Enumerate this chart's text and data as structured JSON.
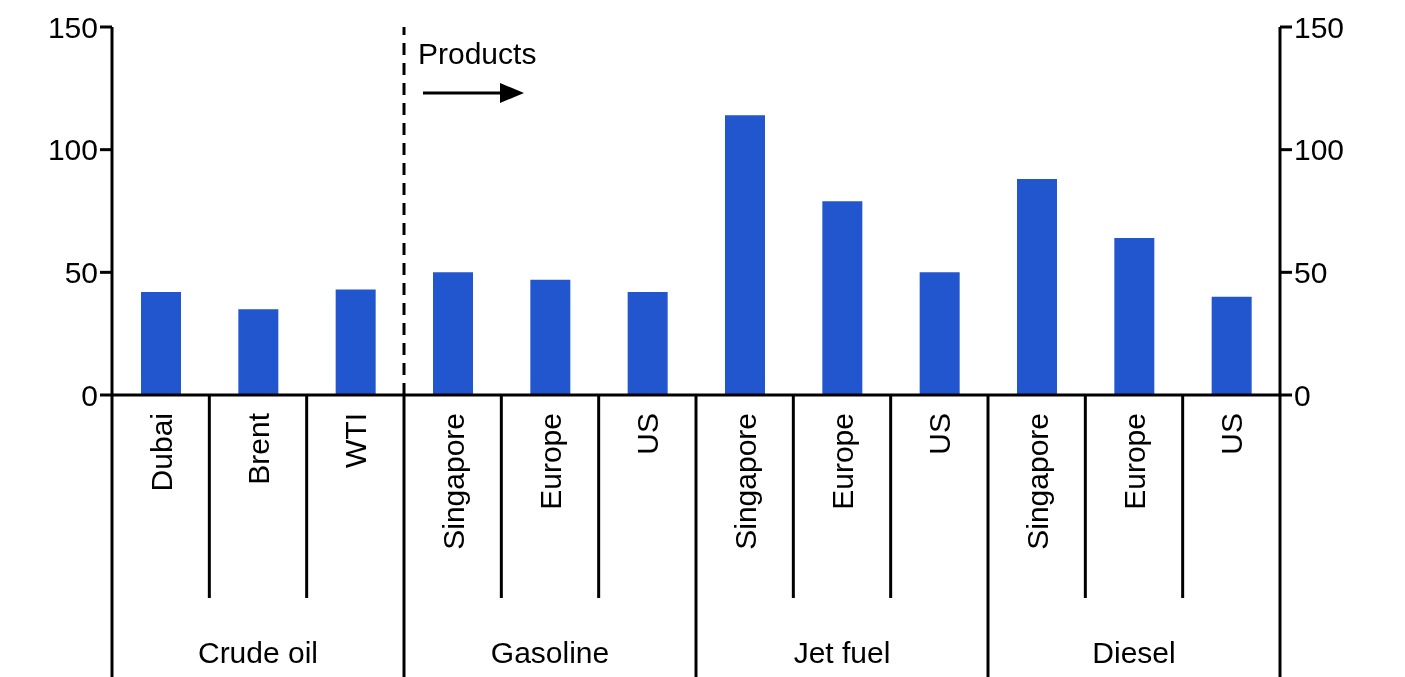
{
  "chart_data": {
    "type": "bar",
    "categories": [
      "Dubai",
      "Brent",
      "WTI",
      "Singapore",
      "Europe",
      "US",
      "Singapore",
      "Europe",
      "US",
      "Singapore",
      "Europe",
      "US"
    ],
    "values": [
      42,
      35,
      43,
      50,
      47,
      42,
      114,
      79,
      50,
      88,
      64,
      40
    ],
    "color": "#2156cf",
    "ylim": [
      0,
      150
    ],
    "yticks": [
      0,
      50,
      100,
      150
    ],
    "y2lim": [
      0,
      150
    ],
    "y2ticks": [
      0,
      50,
      100,
      150
    ],
    "annotations": [
      "Products",
      "Crude oil",
      "Gasoline",
      "Jet fuel",
      "Diesel"
    ]
  }
}
